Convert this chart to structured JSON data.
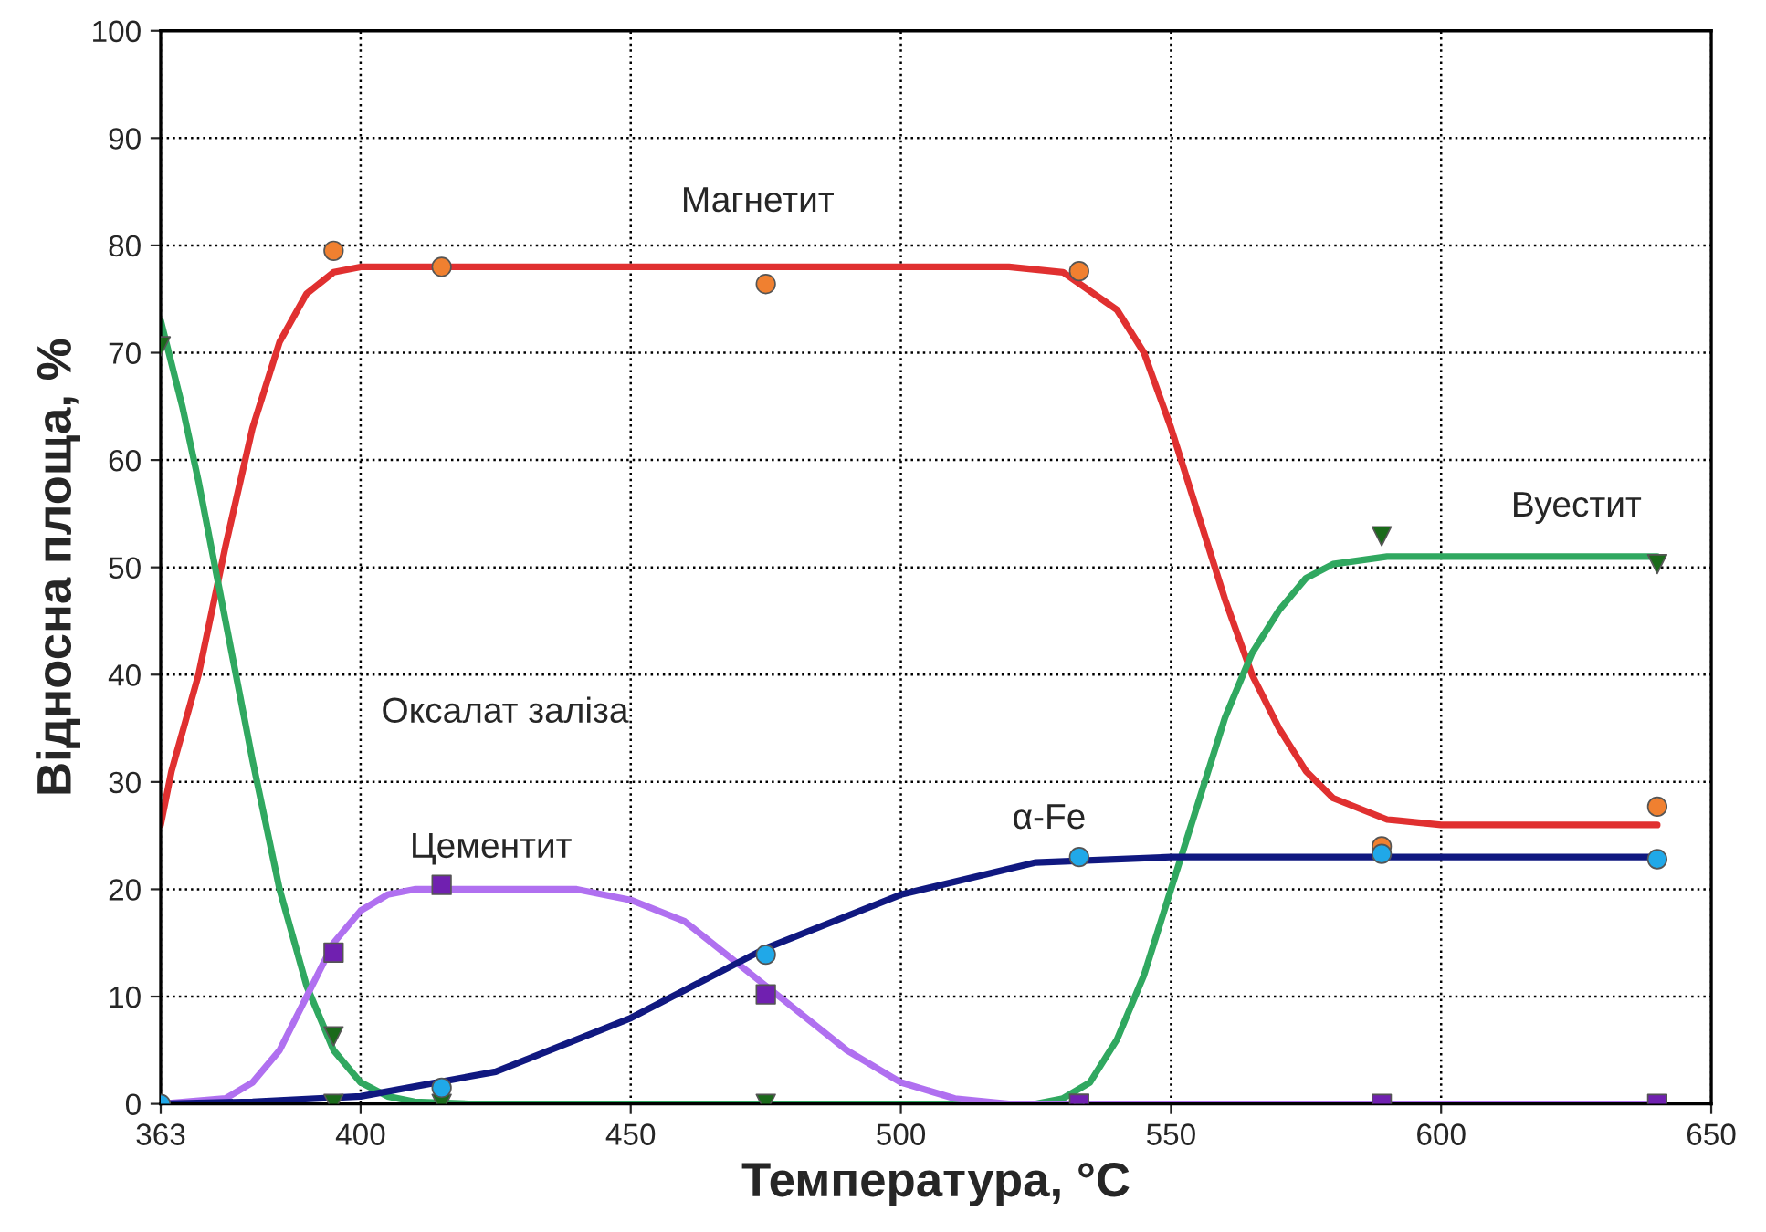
{
  "chart_data": {
    "type": "line",
    "xlabel": "Температура, °C",
    "ylabel": "Відносна площа, %",
    "xlim": [
      363,
      650
    ],
    "xticks": [
      363,
      400,
      450,
      500,
      550,
      600,
      650
    ],
    "ylim": [
      0,
      100
    ],
    "yticks": [
      0,
      10,
      20,
      30,
      40,
      50,
      60,
      70,
      80,
      90,
      100
    ],
    "grid": true,
    "legend": false,
    "series": [
      {
        "color": "#e03030",
        "x": [
          363,
          365,
          370,
          375,
          380,
          385,
          390,
          395,
          400,
          450,
          520,
          530,
          540,
          545,
          550,
          555,
          560,
          565,
          570,
          575,
          580,
          590,
          600,
          640
        ],
        "values": [
          26,
          31,
          40,
          52,
          63,
          71,
          75.5,
          77.5,
          78,
          78,
          78,
          77.5,
          74,
          70,
          63,
          55,
          47,
          40,
          35,
          31,
          28.5,
          26.5,
          26,
          26
        ]
      },
      {
        "color": "#30a860",
        "x": [
          363,
          367,
          370,
          375,
          380,
          385,
          390,
          395,
          400,
          405,
          410,
          420,
          470,
          525,
          530,
          535,
          540,
          545,
          550,
          555,
          560,
          565,
          570,
          575,
          580,
          590,
          640
        ],
        "values": [
          73,
          65,
          58,
          45,
          32,
          20,
          11,
          5,
          2,
          0.7,
          0.2,
          0,
          0,
          0,
          0.5,
          2,
          6,
          12,
          20,
          28,
          36,
          42,
          46,
          49,
          50.3,
          51,
          51
        ]
      },
      {
        "color": "#b070f0",
        "x": [
          363,
          375,
          380,
          385,
          390,
          395,
          400,
          405,
          410,
          440,
          450,
          460,
          470,
          480,
          490,
          500,
          510,
          520,
          640
        ],
        "values": [
          0,
          0.5,
          2,
          5,
          10,
          15,
          18,
          19.5,
          20,
          20,
          19,
          17,
          13,
          9,
          5,
          2,
          0.5,
          0,
          0
        ]
      },
      {
        "color": "#101880",
        "x": [
          363,
          380,
          400,
          425,
          450,
          475,
          500,
          525,
          550,
          640
        ],
        "values": [
          0,
          0.2,
          0.7,
          3,
          8,
          14.5,
          19.5,
          22.5,
          23,
          23
        ]
      },
      {
        "type": "scatter",
        "color": "#f08030",
        "marker": "circle",
        "x": [
          395,
          415,
          475,
          533,
          589,
          640
        ],
        "values": [
          79.5,
          78,
          76.4,
          77.6,
          24,
          27.7
        ]
      },
      {
        "type": "scatter",
        "color": "#1a6a1a",
        "marker": "triangle",
        "x": [
          363,
          395,
          395,
          415,
          475,
          533,
          589,
          640
        ],
        "values": [
          70.6,
          6.3,
          0,
          0,
          0,
          0,
          52.9,
          50.3
        ]
      },
      {
        "type": "scatter",
        "color": "#7020b0",
        "marker": "square",
        "x": [
          395,
          415,
          475,
          533,
          589,
          640
        ],
        "values": [
          14.1,
          20.4,
          10.2,
          0,
          0,
          0
        ]
      },
      {
        "type": "scatter",
        "color": "#20a8e8",
        "marker": "circle",
        "x": [
          363,
          415,
          475,
          533,
          589,
          640
        ],
        "values": [
          0,
          1.5,
          13.9,
          23,
          23.3,
          22.8
        ]
      }
    ],
    "annotations": [
      "Магнетит",
      "Оксалат заліза",
      "Цементит",
      "α-Fe",
      "Вуестит"
    ]
  }
}
